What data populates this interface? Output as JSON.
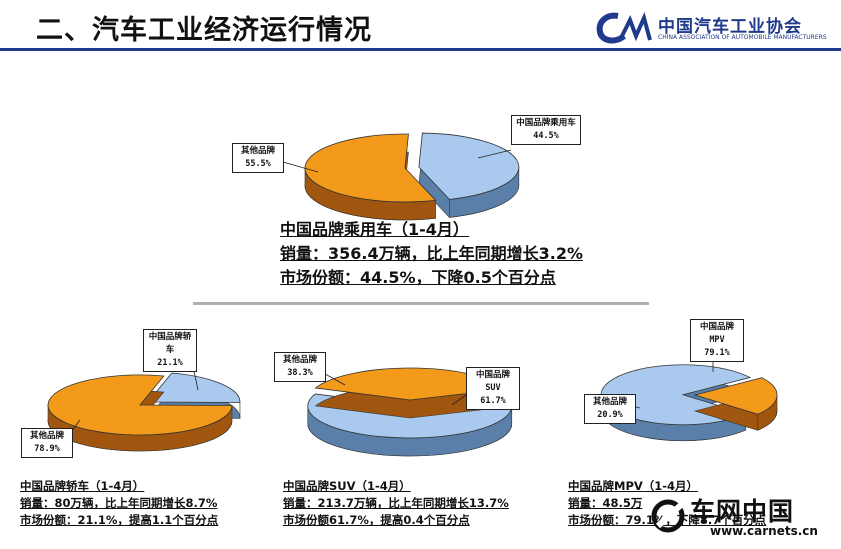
{
  "header": {
    "title": "二、汽车工业经济运行情况",
    "logo_cn": "中国汽车工业协会",
    "logo_en": "CHINA ASSOCIATION OF AUTOMOBILE MANUFACTURERS"
  },
  "colors": {
    "china_brand": "#a9c9ee",
    "other_brand": "#f39a1a",
    "title_rule": "#1f3a8a"
  },
  "chart_data": [
    {
      "type": "pie",
      "title": "中国品牌乘用车（1-4月）",
      "slices": [
        {
          "label": "中国品牌乘用车",
          "value": 44.5,
          "value_label": "44.5%"
        },
        {
          "label": "其他品牌",
          "value": 55.5,
          "value_label": "55.5%"
        }
      ],
      "lines": [
        "中国品牌乘用车（1-4月）",
        "销量：356.4万辆，比上年同期增长3.2%",
        "市场份额：44.5%，下降0.5个百分点"
      ]
    },
    {
      "type": "pie",
      "title": "中国品牌轿车（1-4月）",
      "slices": [
        {
          "label": "中国品牌轿车",
          "value": 21.1,
          "value_label": "21.1%"
        },
        {
          "label": "其他品牌",
          "value": 78.9,
          "value_label": "78.9%"
        }
      ],
      "lines": [
        "中国品牌轿车（1-4月）",
        "销量：80万辆，比上年同期增长8.7%",
        "市场份额：21.1%，提高1.1个百分点"
      ]
    },
    {
      "type": "pie",
      "title": "中国品牌SUV（1-4月）",
      "slices": [
        {
          "label": "中国品牌SUV",
          "value": 61.7,
          "value_label": "61.7%"
        },
        {
          "label": "其他品牌",
          "value": 38.3,
          "value_label": "38.3%"
        }
      ],
      "lines": [
        "中国品牌SUV（1-4月）",
        "销量：213.7万辆，比上年同期增长13.7%",
        "市场份额61.7%，提高0.4个百分点"
      ]
    },
    {
      "type": "pie",
      "title": "中国品牌MPV（1-4月）",
      "slices": [
        {
          "label": "中国品牌MPV",
          "value": 79.1,
          "value_label": "79.1%"
        },
        {
          "label": "其他品牌",
          "value": 20.9,
          "value_label": "20.9%"
        }
      ],
      "lines": [
        "中国品牌MPV（1-4月）",
        "销量：48.5万",
        "市场份额：79.1%，下降8.7个百分点"
      ]
    }
  ],
  "watermark": {
    "cn": "车网中国",
    "url": "www.carnets.cn"
  }
}
